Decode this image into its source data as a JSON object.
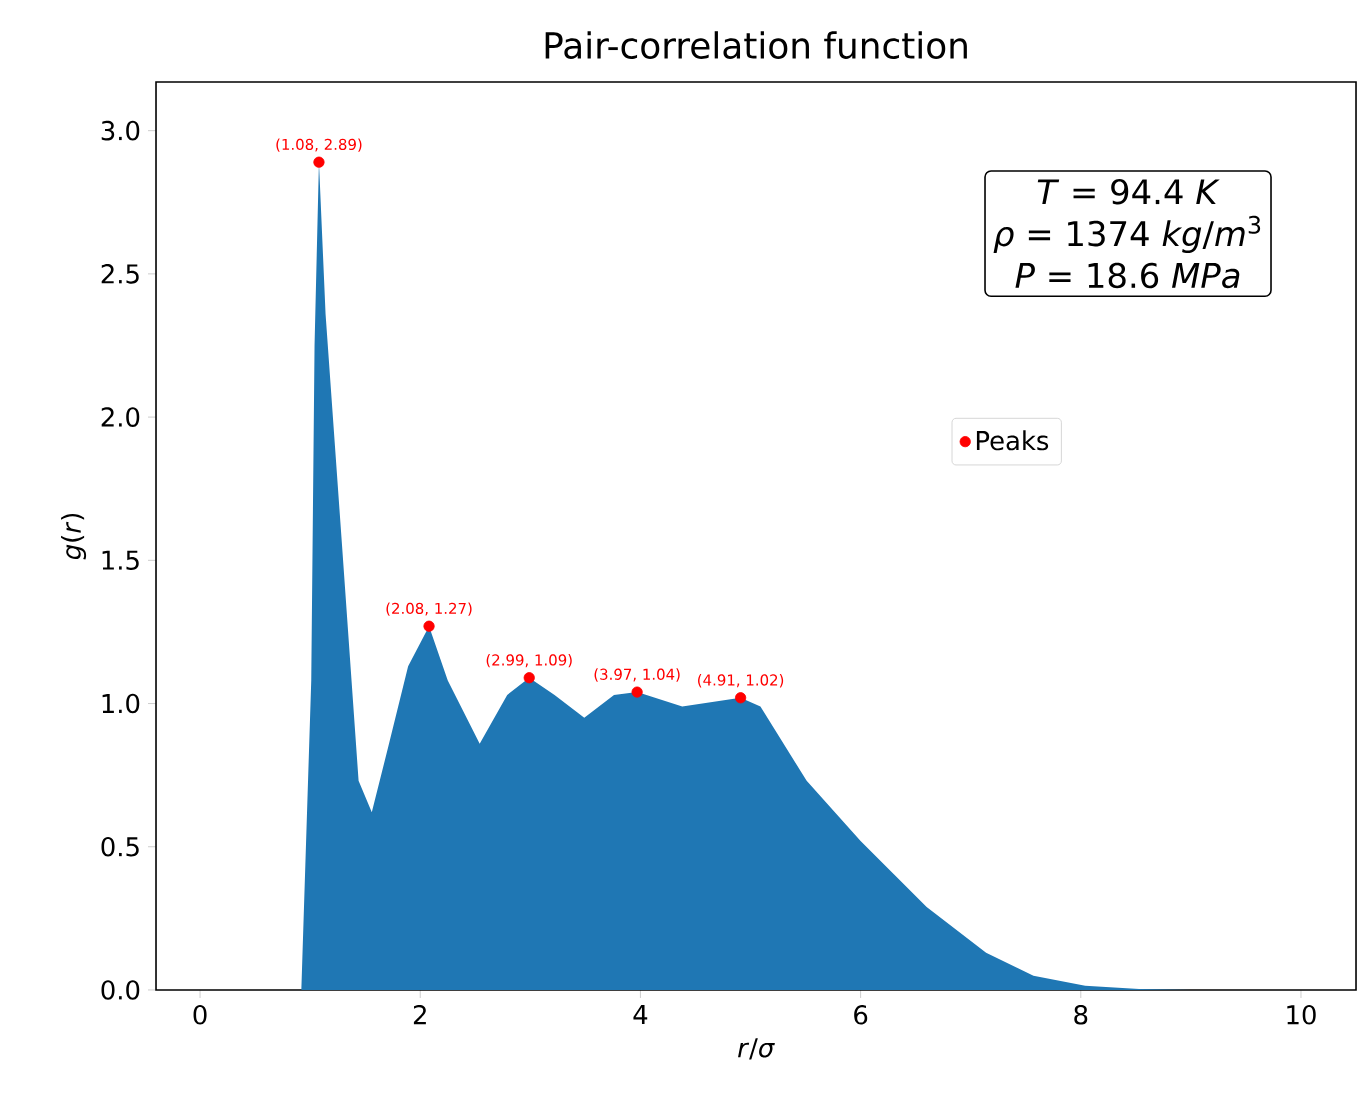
{
  "chart_data": {
    "type": "area",
    "title": "Pair-correlation function",
    "xlabel": "*r*/*σ*",
    "ylabel": "*g*(*r*)",
    "xlim": [
      -0.4,
      10.5
    ],
    "ylim": [
      0,
      3.17
    ],
    "xticks": [
      0,
      2,
      4,
      6,
      8,
      10
    ],
    "yticks": [
      {
        "value": 0,
        "label": "0.0"
      },
      0.5,
      {
        "value": 1,
        "label": "1.0"
      },
      1.5,
      {
        "value": 2,
        "label": "2.0"
      },
      2.5,
      {
        "value": 3,
        "label": "3.0"
      }
    ],
    "legend": "right",
    "grid": false,
    "series": [
      {
        "color": "#1f77b4",
        "x": [
          0.1,
          0.5,
          0.92,
          1.01,
          1.04,
          1.08,
          1.14,
          1.29,
          1.44,
          1.56,
          1.71,
          1.89,
          2.08,
          2.25,
          2.54,
          2.79,
          2.99,
          3.22,
          3.49,
          3.76,
          3.97,
          4.38,
          4.91,
          5.09,
          5.51,
          6.0,
          6.6,
          7.14,
          7.57,
          8.04,
          8.53,
          9.0,
          10.0
        ],
        "values": [
          0,
          0,
          0,
          1.08,
          2.25,
          2.89,
          2.36,
          1.55,
          0.73,
          0.62,
          0.85,
          1.13,
          1.27,
          1.08,
          0.86,
          1.03,
          1.09,
          1.03,
          0.95,
          1.03,
          1.04,
          0.99,
          1.02,
          0.99,
          0.73,
          0.52,
          0.29,
          0.13,
          0.05,
          0.015,
          0.003,
          0,
          0
        ]
      },
      {
        "type": "scatter",
        "name": "Peaks",
        "color": "#ff0000",
        "x": [
          1.08,
          2.08,
          2.99,
          3.97,
          4.91
        ],
        "values": [
          2.89,
          1.27,
          1.09,
          1.04,
          1.02
        ]
      }
    ],
    "annotations": [
      {
        "text": "(1.08, 2.89)",
        "x": 1.08,
        "y": 2.89
      },
      {
        "text": "(2.08, 1.27)",
        "x": 2.08,
        "y": 1.27
      },
      {
        "text": "(2.99, 1.09)",
        "x": 2.99,
        "y": 1.09
      },
      {
        "text": "(3.97, 1.04)",
        "x": 3.97,
        "y": 1.04
      },
      {
        "text": "(4.91, 1.02)",
        "x": 4.91,
        "y": 1.02
      },
      "*T* = 94.4 *K*",
      "*ρ* = 1374 *kg*/*m*$^{3}$",
      "*P* = 18.6 *MPa*"
    ]
  }
}
